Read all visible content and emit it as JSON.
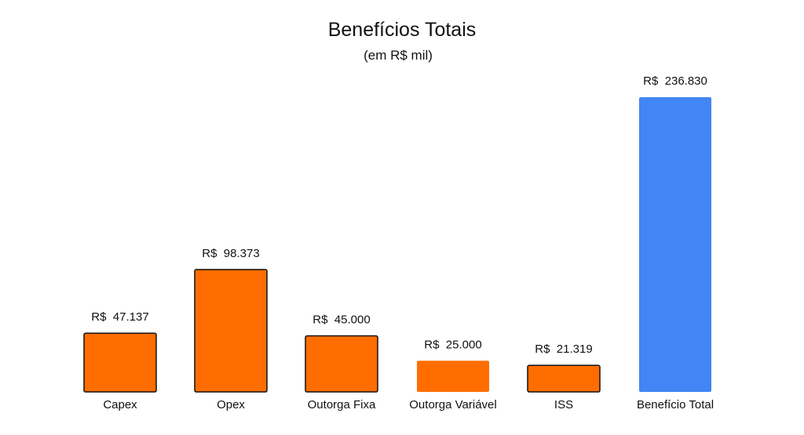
{
  "chart_data": {
    "type": "bar",
    "title": "Benefícios Totais",
    "subtitle": "(em R$ mil)",
    "xlabel": "",
    "ylabel": "",
    "categories": [
      "Capex",
      "Opex",
      "Outorga Fixa",
      "Outorga Variável",
      "ISS",
      "Benefício Total"
    ],
    "values": [
      47137,
      98373,
      45000,
      25000,
      21319,
      236830
    ],
    "data_labels": [
      "R$  47.137",
      "R$  98.373",
      "R$  45.000",
      "R$  25.000",
      "R$  21.319",
      "R$  236.830"
    ],
    "ylim": [
      0,
      236830
    ],
    "grid": false,
    "legend": "none",
    "colors": [
      "#ff6d00",
      "#ff6d00",
      "#ff6d00",
      "#ff6d00",
      "#ff6d00",
      "#4285f4"
    ],
    "bar_outline_color": "#111111"
  }
}
